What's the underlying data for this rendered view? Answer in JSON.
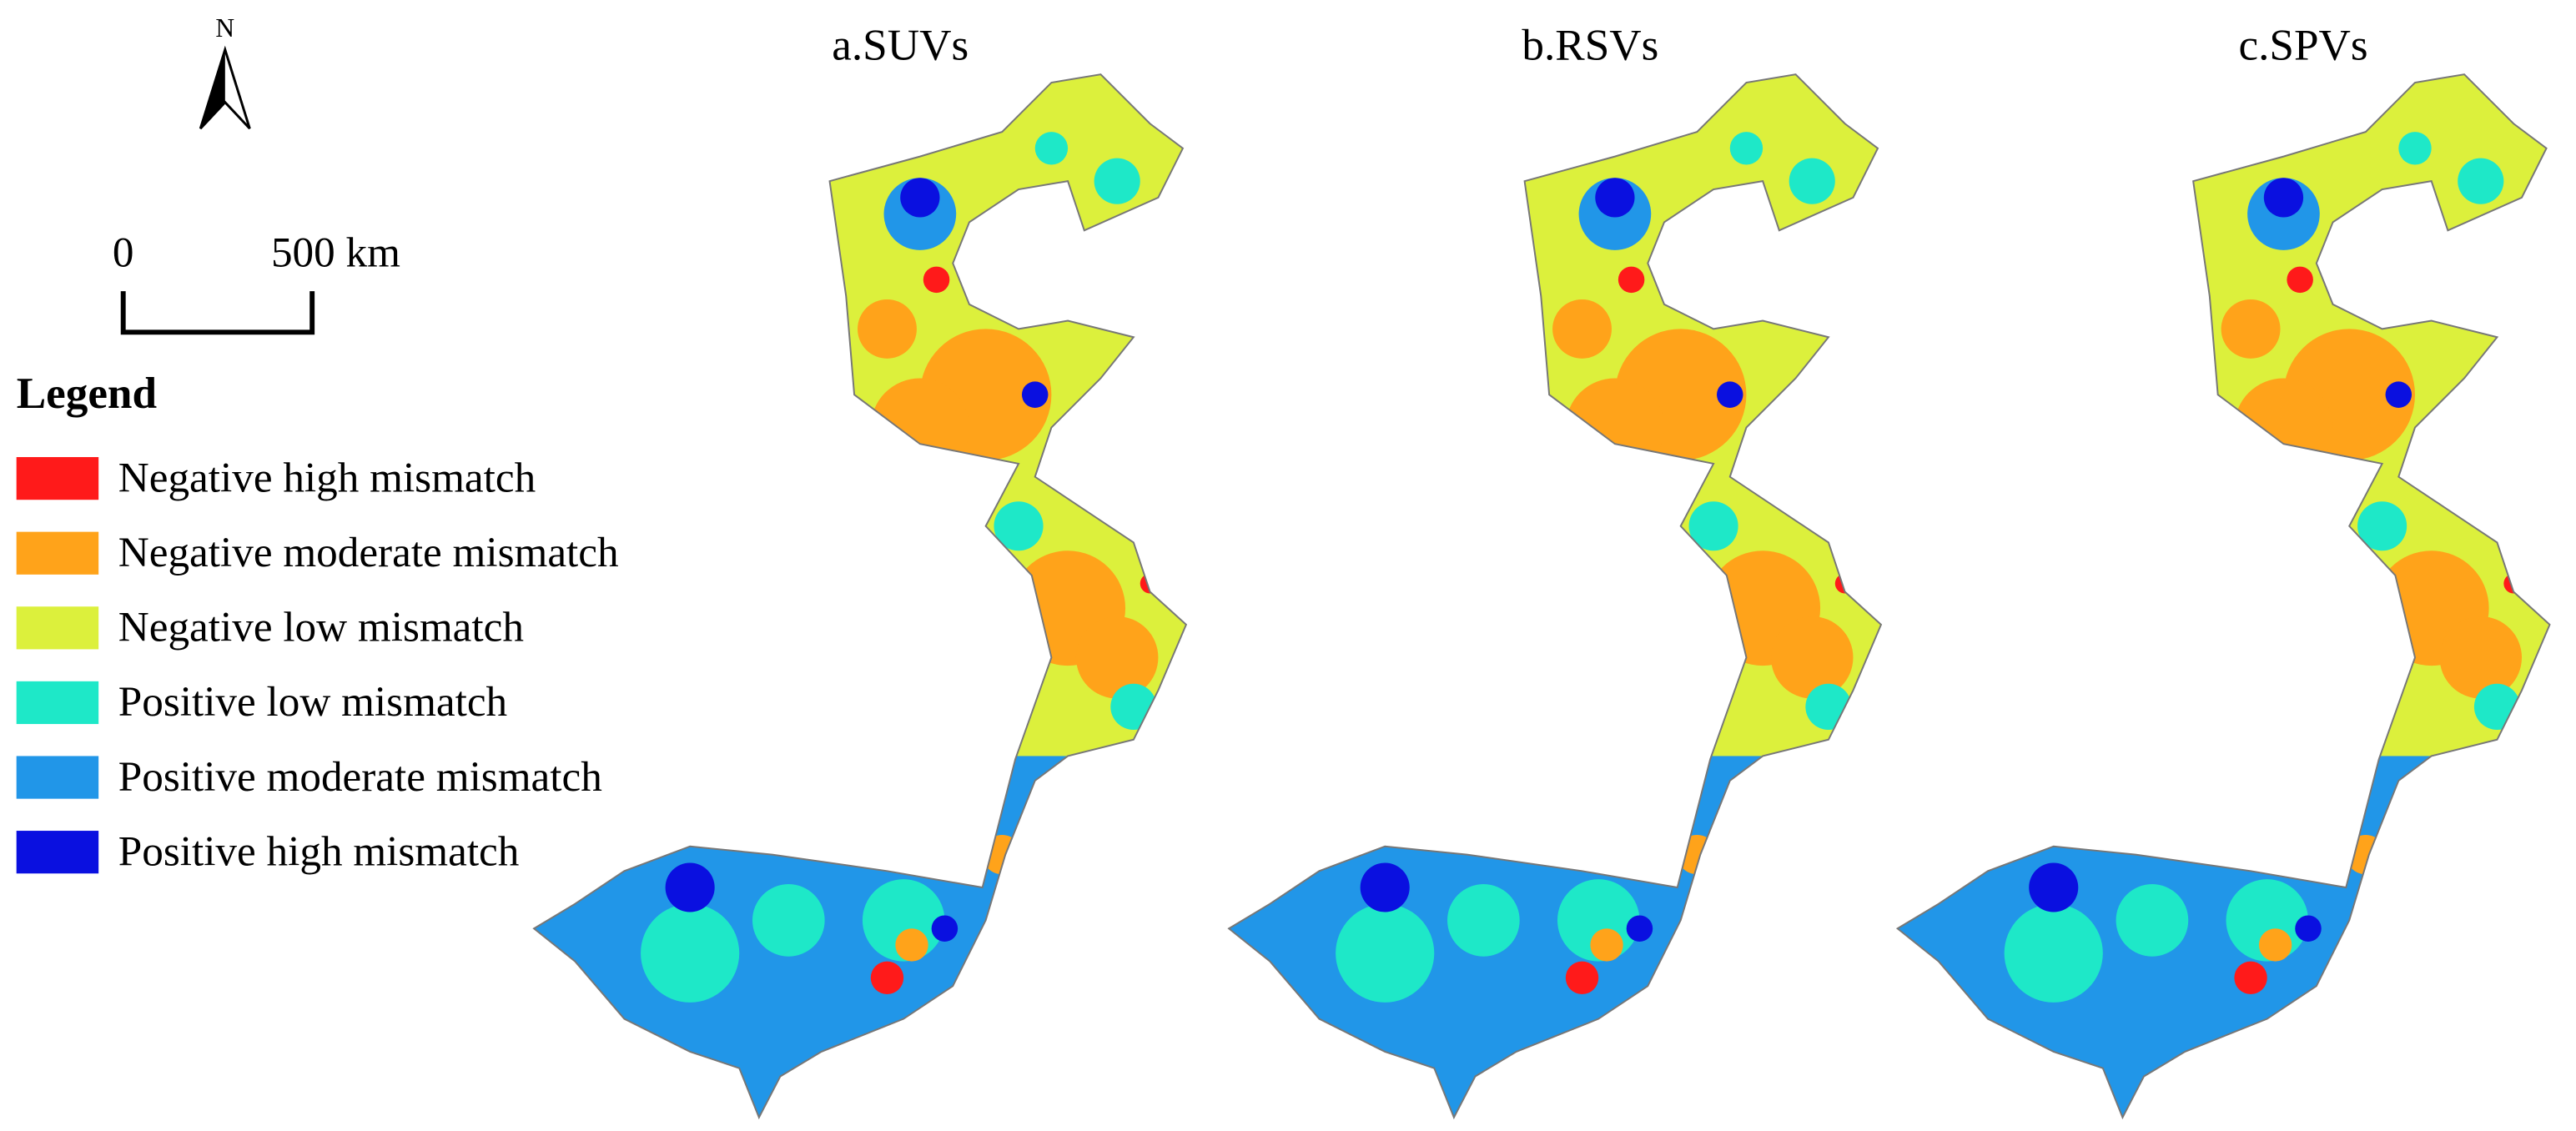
{
  "north_arrow": {
    "label": "N"
  },
  "scale_bar": {
    "start": "0",
    "end": "500 km"
  },
  "legend": {
    "title": "Legend",
    "items": [
      {
        "label": "Negative high mismatch",
        "color": "#ff1a1a"
      },
      {
        "label": "Negative moderate mismatch",
        "color": "#ffa31a"
      },
      {
        "label": "Negative low mismatch",
        "color": "#dcf03c"
      },
      {
        "label": "Positive low mismatch",
        "color": "#1ee8c8"
      },
      {
        "label": "Positive moderate mismatch",
        "color": "#2196e8"
      },
      {
        "label": "Positive high mismatch",
        "color": "#0a10e0"
      }
    ]
  },
  "panels": [
    {
      "title": "a.SUVs"
    },
    {
      "title": "b.RSVs"
    },
    {
      "title": "c.SPVs"
    }
  ]
}
